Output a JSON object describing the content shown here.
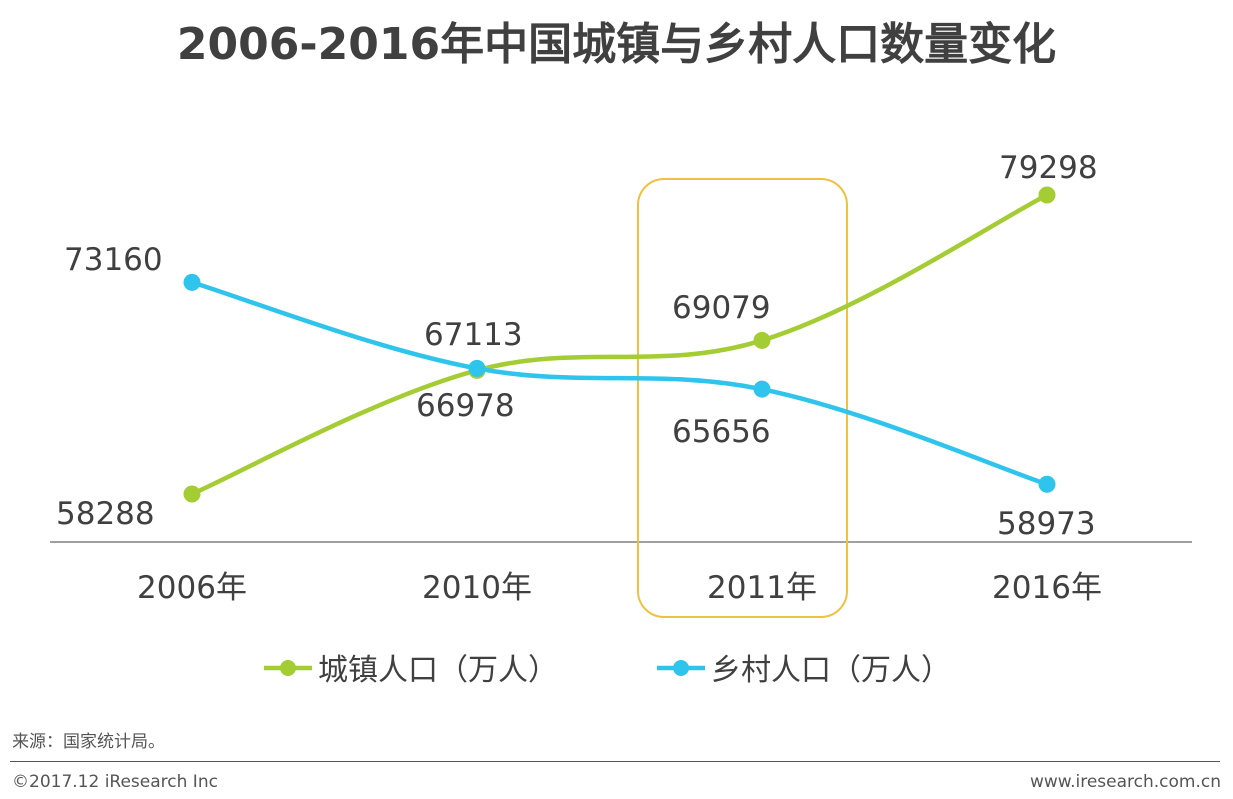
{
  "chart_data": {
    "type": "line",
    "title": "2006-2016年中国城镇与乡村人口数量变化",
    "categories": [
      "2006年",
      "2010年",
      "2011年",
      "2016年"
    ],
    "series": [
      {
        "name": "城镇人口（万人）",
        "color": "#a4cc33",
        "values": [
          58288,
          66978,
          69079,
          79298
        ]
      },
      {
        "name": "乡村人口（万人）",
        "color": "#2ec4ec",
        "values": [
          73160,
          67113,
          65656,
          58973
        ]
      }
    ],
    "labels": {
      "urban": [
        "58288",
        "66978",
        "69079",
        "79298"
      ],
      "rural": [
        "73160",
        "67113",
        "65656",
        "58973"
      ]
    },
    "highlight_category": "2011年",
    "highlight_color": "#f0c040",
    "xlabel": "",
    "ylabel": "",
    "ylim": [
      48000,
      85000
    ]
  },
  "source": "来源：国家统计局。",
  "copyright": "©2017.12 iResearch Inc",
  "website": "www.iresearch.com.cn"
}
